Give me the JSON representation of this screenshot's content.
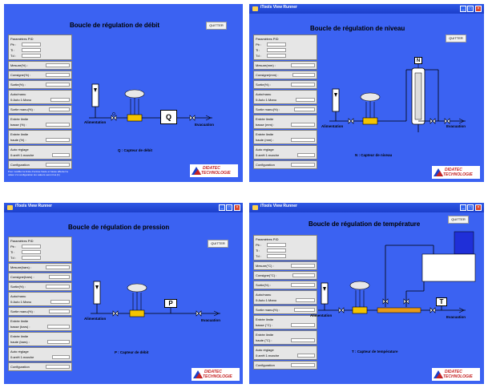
{
  "panels": [
    {
      "window_title": "",
      "title": "Boucle de régulation de débit",
      "quit_label": "QUITTER",
      "sidebar": {
        "pid_header": "Paramètres PID",
        "pb": "Pb :",
        "ti": "Ti :",
        "td": "Td :",
        "mesure": "Mesure(%) :",
        "consigne": "Consigne(%) :",
        "sortie": "Sortie(%) :",
        "automanu": "Auto/manu",
        "automanu_opts": "0:Auto  1:Manu",
        "sortie_manu": "Sortie manu(%) :",
        "entree_basse_1": "Entrée limite",
        "entree_basse_2": "basse (%) :",
        "entree_haute_1": "Entrée limite",
        "entree_haute_2": "haute (%) :",
        "auto_reglage": "Auto réglage",
        "auto_reglage_opts": "0:arrêt   1:marche",
        "configuration": "Configuration",
        "note": "Pour modifier la limite d'entrée haute et basse affecter la valeur 2 à configuration les valeurs seront lus (1)"
      },
      "alimentation": "Alimentation",
      "evacuation": "Evacuation",
      "sensor_letter": "Q",
      "caption": "Q : Capteur de débit",
      "logo_top": "DIDATEC",
      "logo_bottom": "TECHNOLOGIE"
    },
    {
      "window_title": "iTools View Runner",
      "title": "Boucle de régulation de niveau",
      "quit_label": "QUITTER",
      "sidebar": {
        "pid_header": "Paramètres PID",
        "pb": "Pb :",
        "ti": "Ti :",
        "td": "Td :",
        "mesure": "Mesure(mm) :",
        "consigne": "Consigne(mm) :",
        "sortie": "Sortie(%) :",
        "automanu": "Auto/manu",
        "automanu_opts": "0:Auto  1:Manu",
        "sortie_manu": "Sortie manu(%) :",
        "entree_basse_1": "Entrée limite",
        "entree_basse_2": "basse (mm) :",
        "entree_haute_1": "Entrée limite",
        "entree_haute_2": "haute (mm) :",
        "auto_reglage": "Auto réglage",
        "auto_reglage_opts": "0:arrêt   1:marche",
        "configuration": "Configuration",
        "note": ""
      },
      "alimentation": "Alimentation",
      "evacuation": "Evacuation",
      "sensor_letter": "N",
      "caption": "N : Capteur de niveau",
      "logo_top": "DIDATEC",
      "logo_bottom": "TECHNOLOGIE"
    },
    {
      "window_title": "iTools View Runner",
      "title": "Boucle de régulation de pression",
      "quit_label": "QUITTER",
      "sidebar": {
        "pid_header": "Paramètres PID",
        "pb": "Pb :",
        "ti": "Ti :",
        "td": "Td :",
        "mesure": "Mesure(bars) :",
        "consigne": "Consigne(bars) :",
        "sortie": "Sortie(%) :",
        "automanu": "Auto/manu",
        "automanu_opts": "0:Auto  1:Manu",
        "sortie_manu": "Sortie manu(%) :",
        "entree_basse_1": "Entrée limite",
        "entree_basse_2": "basse (bars) :",
        "entree_haute_1": "Entrée limite",
        "entree_haute_2": "haute (bars) :",
        "auto_reglage": "Auto réglage",
        "auto_reglage_opts": "0:arrêt   1:marche",
        "configuration": "Configuration",
        "note": ""
      },
      "alimentation": "Alimentation",
      "evacuation": "Evacuation",
      "sensor_letter": "P",
      "caption": "P : Capteur de débit",
      "logo_top": "DIDATEC",
      "logo_bottom": "TECHNOLOGIE"
    },
    {
      "window_title": "iTools View Runner",
      "title": "Boucle de régulation de température",
      "quit_label": "QUITTER",
      "sidebar": {
        "pid_header": "Paramètres PID",
        "pb": "Pb :",
        "ti": "Ti :",
        "td": "Td :",
        "mesure": "Mesure(°C) :",
        "consigne": "Consigne(°C) :",
        "sortie": "Sortie(%) :",
        "automanu": "Auto/manu",
        "automanu_opts": "0:Auto  1:Manu",
        "sortie_manu": "Sortie manu(%) :",
        "entree_basse_1": "Entrée limite",
        "entree_basse_2": "basse (°C) :",
        "entree_haute_1": "Entrée limite",
        "entree_haute_2": "haute (°C) :",
        "auto_reglage": "Auto réglage",
        "auto_reglage_opts": "0:arrêt   1:marche",
        "configuration": "Configuration",
        "note": ""
      },
      "alimentation": "Alimentation",
      "evacuation": "Evacuation",
      "sensor_letter": "T",
      "caption": "T : Capteur de température",
      "logo_top": "DIDATEC",
      "logo_bottom": "TECHNOLOGIE"
    }
  ],
  "colors": {
    "panel_bg": "#3b62f2",
    "sidebar_bg": "#e6e6e6",
    "valve_body": "#f4c400",
    "heater": "#e89a1a",
    "tank_water": "#1f2fd8",
    "logo_red": "#c52323"
  }
}
